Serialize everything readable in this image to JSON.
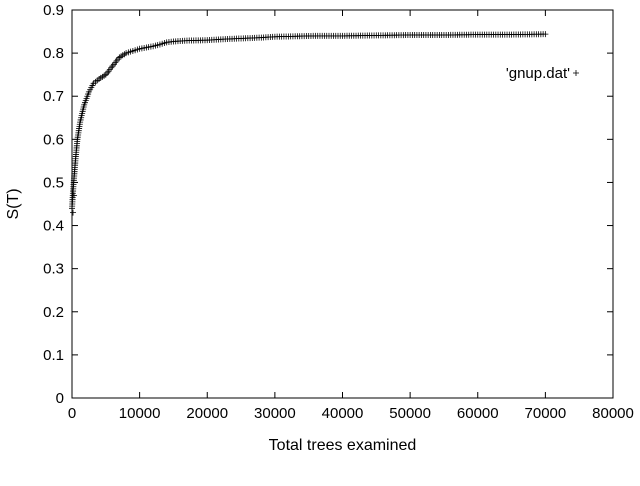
{
  "chart_data": {
    "type": "scatter",
    "title": "",
    "xlabel": "Total trees examined",
    "ylabel": "S(T)",
    "xlim": [
      0,
      80000
    ],
    "ylim": [
      0,
      0.9
    ],
    "x_ticks": [
      0,
      10000,
      20000,
      30000,
      40000,
      50000,
      60000,
      70000,
      80000
    ],
    "y_ticks": [
      0,
      0.1,
      0.2,
      0.3,
      0.4,
      0.5,
      0.6,
      0.7,
      0.8,
      0.9
    ],
    "grid": false,
    "legend_position": "top-right",
    "marker": "+",
    "series": [
      {
        "name": "'gnup.dat'",
        "x": [
          0,
          200,
          500,
          800,
          1200,
          1800,
          2500,
          3200,
          4000,
          5000,
          6000,
          7000,
          8000,
          9000,
          10000,
          11000,
          12000,
          13000,
          14000,
          15000,
          17000,
          20000,
          22000,
          25000,
          28000,
          30000,
          33000,
          36000,
          40000,
          45000,
          50000,
          55000,
          60000,
          65000,
          70000
        ],
        "y": [
          0.44,
          0.49,
          0.55,
          0.6,
          0.64,
          0.68,
          0.71,
          0.73,
          0.74,
          0.75,
          0.77,
          0.79,
          0.8,
          0.805,
          0.81,
          0.813,
          0.816,
          0.82,
          0.825,
          0.827,
          0.829,
          0.83,
          0.832,
          0.834,
          0.836,
          0.838,
          0.839,
          0.84,
          0.84,
          0.841,
          0.842,
          0.842,
          0.843,
          0.843,
          0.844
        ]
      }
    ]
  }
}
